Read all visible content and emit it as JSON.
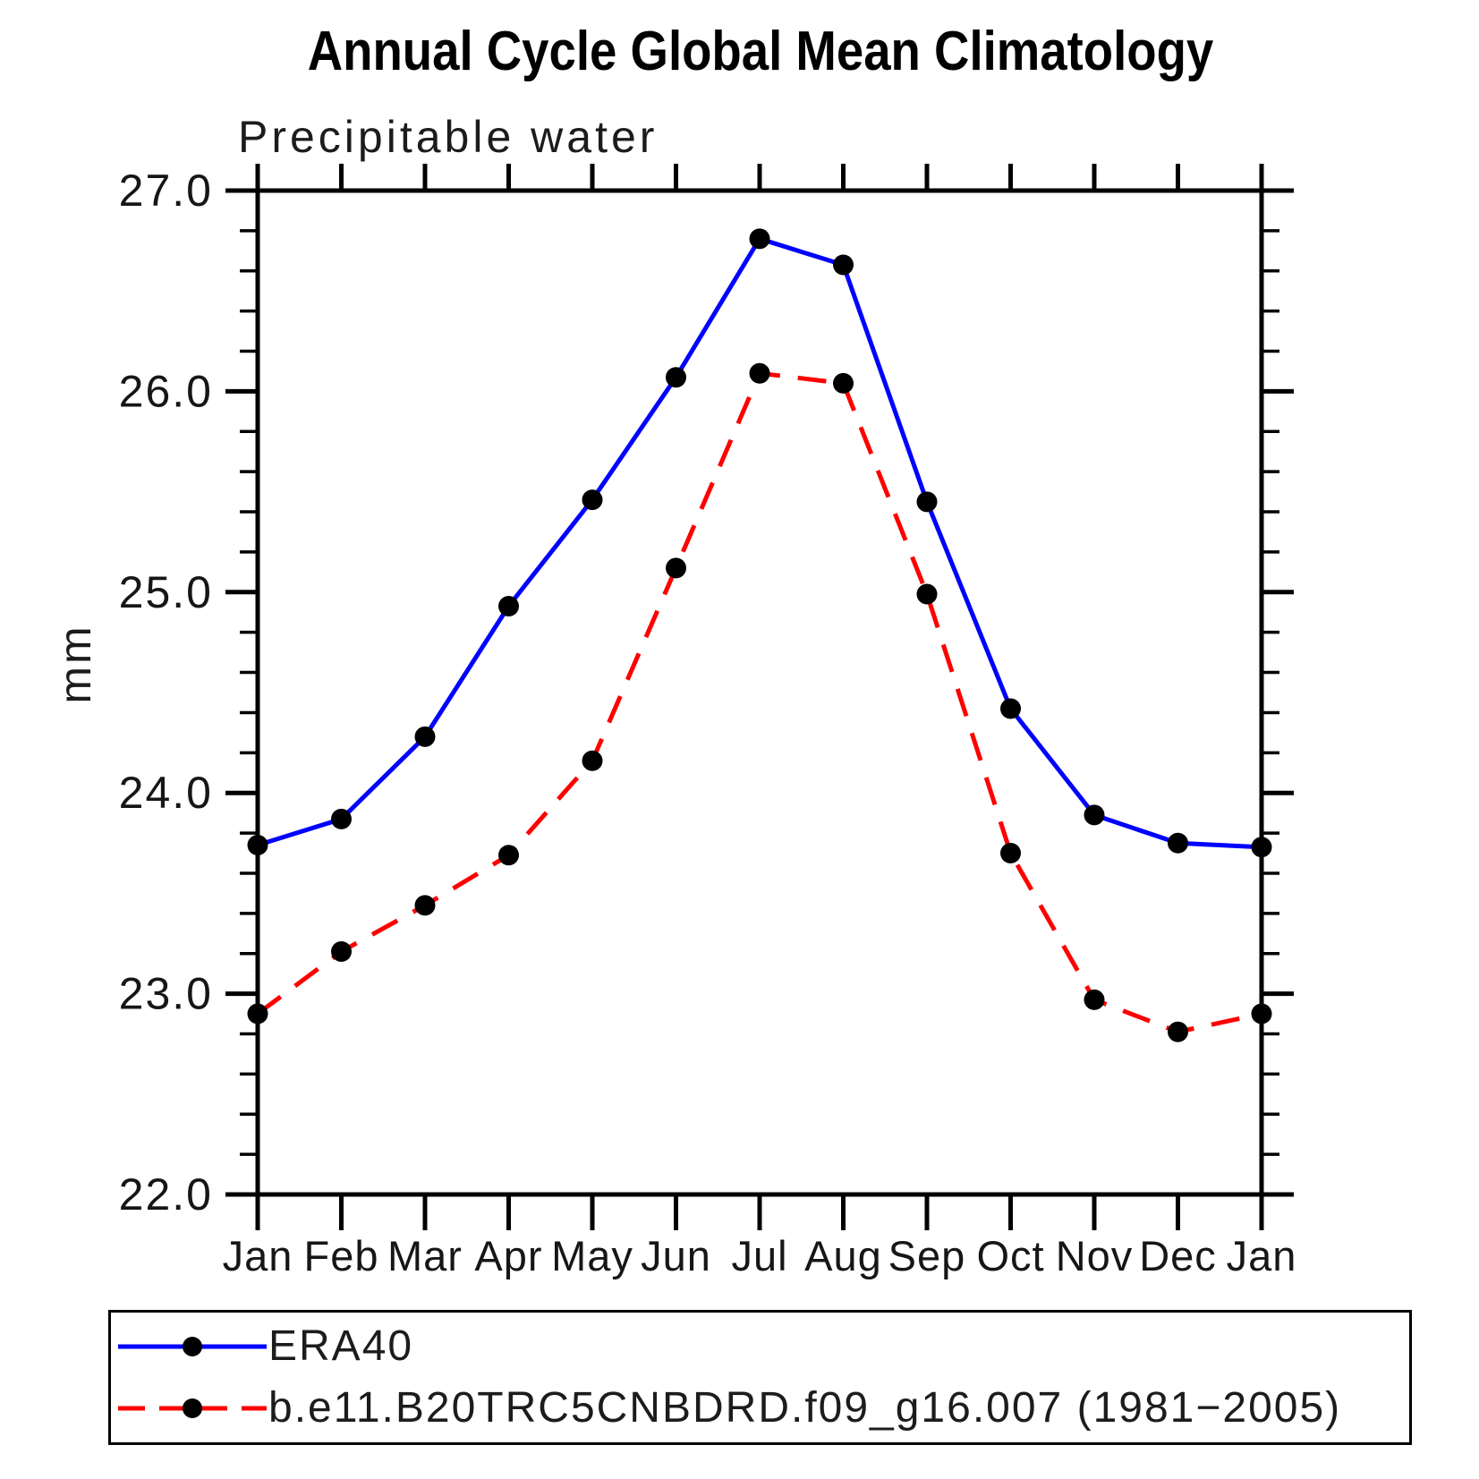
{
  "title": "Annual Cycle Global Mean Climatology",
  "subtitle": "Precipitable water",
  "ylabel": "mm",
  "colors": {
    "era40_line": "#0000ff",
    "model_line": "#ff0000",
    "marker": "#000000",
    "axis": "#000000"
  },
  "chart_data": {
    "type": "line",
    "title": "Annual Cycle Global Mean Climatology",
    "subtitle": "Precipitable water",
    "xlabel": "",
    "ylabel": "mm",
    "categories": [
      "Jan",
      "Feb",
      "Mar",
      "Apr",
      "May",
      "Jun",
      "Jul",
      "Aug",
      "Sep",
      "Oct",
      "Nov",
      "Dec",
      "Jan"
    ],
    "series": [
      {
        "name": "ERA40",
        "color": "#0000ff",
        "style": "solid",
        "marker": "black-dot",
        "values": [
          23.74,
          23.87,
          24.28,
          24.93,
          25.46,
          26.07,
          26.76,
          26.63,
          25.45,
          24.42,
          23.89,
          23.75,
          23.73
        ]
      },
      {
        "name": "b.e11.B20TRC5CNBDRD.f09_g16.007 (1981−2005)",
        "color": "#ff0000",
        "style": "dashed",
        "marker": "black-dot",
        "values": [
          22.9,
          23.21,
          23.44,
          23.69,
          24.16,
          25.12,
          26.09,
          26.04,
          24.99,
          23.7,
          22.97,
          22.81,
          22.9
        ]
      }
    ],
    "ylim": [
      22.0,
      27.0
    ],
    "yticks": [
      22.0,
      23.0,
      24.0,
      25.0,
      26.0,
      27.0
    ],
    "ytick_labels": [
      "22.0",
      "23.0",
      "24.0",
      "25.0",
      "26.0",
      "27.0"
    ],
    "minor_tick_interval": 0.2,
    "grid": false,
    "legend_position": "bottom"
  }
}
